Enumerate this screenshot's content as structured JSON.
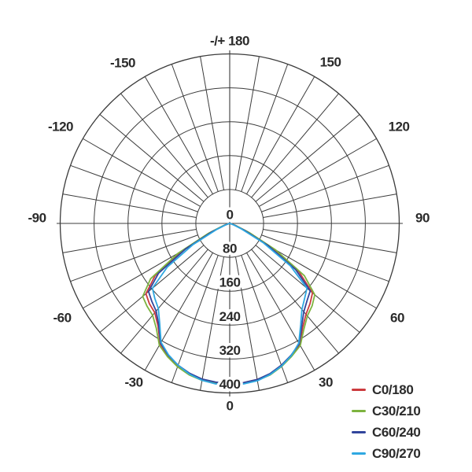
{
  "figure": {
    "background": "#ffffff",
    "grid_color": "#3c3c3c",
    "text_color": "#2b2b2b"
  },
  "chart_data": {
    "type": "line",
    "subtype": "polar-photometric-distribution",
    "title": "",
    "angle_zero_position": "bottom",
    "angle_unit": "degrees",
    "radial_ticks": [
      0,
      80,
      160,
      240,
      320,
      400
    ],
    "radial_max": 400,
    "grid": {
      "ring_step": 80,
      "spoke_step_deg": 10,
      "rings": 5,
      "grid_on": true
    },
    "angle_labels": [
      {
        "angle": 180,
        "label": "-/+ 180"
      },
      {
        "angle": -150,
        "label": "-150"
      },
      {
        "angle": 150,
        "label": "150"
      },
      {
        "angle": -120,
        "label": "-120"
      },
      {
        "angle": 120,
        "label": "120"
      },
      {
        "angle": -90,
        "label": "-90"
      },
      {
        "angle": 90,
        "label": "90"
      },
      {
        "angle": -60,
        "label": "-60"
      },
      {
        "angle": 60,
        "label": "60"
      },
      {
        "angle": -30,
        "label": "-30"
      },
      {
        "angle": 30,
        "label": "30"
      },
      {
        "angle": 0,
        "label": "0"
      }
    ],
    "angles_deg": [
      -90,
      -85,
      -80,
      -75,
      -70,
      -65,
      -60,
      -55,
      -50,
      -45,
      -40,
      -35,
      -30,
      -25,
      -20,
      -15,
      -10,
      -5,
      0,
      5,
      10,
      15,
      20,
      25,
      30,
      35,
      40,
      45,
      50,
      55,
      60,
      65,
      70,
      75,
      80,
      85,
      90
    ],
    "series": [
      {
        "name": "C0/180",
        "color": "#cc3b3e",
        "values": [
          0,
          0,
          0,
          4,
          15,
          50,
          130,
          215,
          258,
          268,
          275,
          295,
          328,
          345,
          358,
          368,
          374,
          377,
          378,
          377,
          374,
          368,
          357,
          344,
          330,
          300,
          280,
          268,
          255,
          200,
          115,
          45,
          14,
          4,
          0,
          0,
          0
        ]
      },
      {
        "name": "C30/210",
        "color": "#7db33f",
        "values": [
          0,
          0,
          0,
          5,
          18,
          55,
          140,
          228,
          268,
          276,
          283,
          302,
          332,
          347,
          360,
          370,
          376,
          379,
          380,
          379,
          376,
          370,
          359,
          346,
          333,
          305,
          285,
          275,
          262,
          215,
          125,
          50,
          16,
          5,
          0,
          0,
          0
        ]
      },
      {
        "name": "C60/240",
        "color": "#32459c",
        "values": [
          0,
          0,
          0,
          3,
          13,
          45,
          120,
          205,
          250,
          260,
          270,
          292,
          326,
          343,
          356,
          366,
          373,
          376,
          378,
          377,
          374,
          367,
          356,
          343,
          328,
          296,
          272,
          258,
          248,
          190,
          105,
          38,
          12,
          3,
          0,
          0,
          0
        ]
      },
      {
        "name": "C90/270",
        "color": "#2fa8e1",
        "values": [
          0,
          0,
          0,
          2,
          10,
          35,
          100,
          180,
          238,
          250,
          262,
          288,
          324,
          342,
          356,
          368,
          376,
          380,
          382,
          380,
          377,
          369,
          358,
          344,
          326,
          292,
          265,
          250,
          238,
          175,
          92,
          30,
          9,
          2,
          0,
          0,
          0
        ]
      }
    ],
    "legend": {
      "position": "bottom-right",
      "entries": [
        "C0/180",
        "C30/210",
        "C60/240",
        "C90/270"
      ]
    }
  }
}
